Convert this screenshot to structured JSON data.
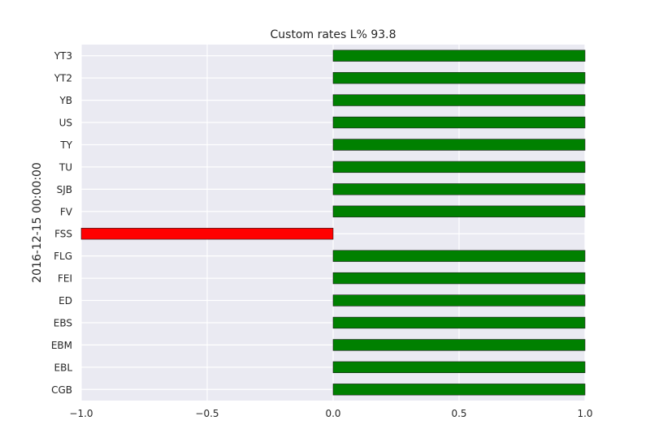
{
  "chart_data": {
    "type": "bar",
    "orientation": "horizontal",
    "title": "Custom rates L% 93.8",
    "xlabel": "",
    "ylabel": "2016-12-15 00:00:00",
    "xlim": [
      -1.0,
      1.0
    ],
    "xticks": [
      "−1.0",
      "−0.5",
      "0.0",
      "0.5",
      "1.0"
    ],
    "xtick_values": [
      -1.0,
      -0.5,
      0.0,
      0.5,
      1.0
    ],
    "categories": [
      "CGB",
      "EBL",
      "EBM",
      "EBS",
      "ED",
      "FEI",
      "FLG",
      "FSS",
      "FV",
      "SJB",
      "TU",
      "TY",
      "US",
      "YB",
      "YT2",
      "YT3"
    ],
    "values": [
      1,
      1,
      1,
      1,
      1,
      1,
      1,
      -1,
      1,
      1,
      1,
      1,
      1,
      1,
      1,
      1
    ],
    "colors": {
      "positive": "#008000",
      "negative": "#ff0000",
      "background": "#eaeaf2",
      "grid": "#ffffff",
      "bar_edge": "#1a1a1a"
    },
    "grid": true
  }
}
